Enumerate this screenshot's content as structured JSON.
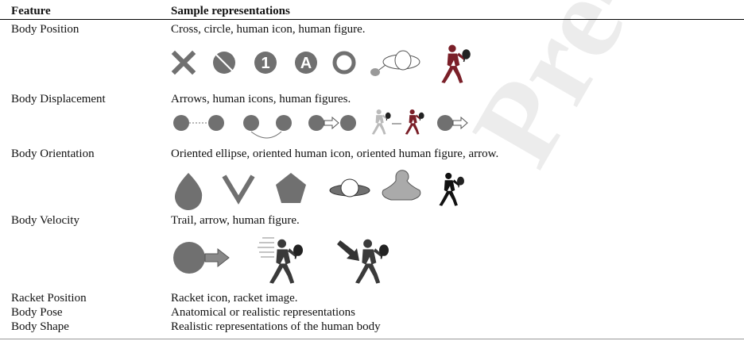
{
  "header": {
    "feature": "Feature",
    "samples": "Sample representations"
  },
  "table": {
    "rows": [
      [
        "Body Position",
        "Cross, circle, human icon, human figure."
      ],
      [
        "Body Displacement",
        "Arrows, human icons, human figures."
      ],
      [
        "Body Orientation",
        "Oriented ellipse, oriented human icon, oriented human figure, arrow."
      ],
      [
        "Body Velocity",
        "Trail, arrow, human figure."
      ],
      [
        "Racket Position",
        "Racket icon, racket image."
      ],
      [
        "Body Pose",
        "Anatomical or realistic representations"
      ],
      [
        "Body Shape",
        "Realistic representations of the human body"
      ]
    ]
  },
  "icons": {
    "number_marker": "1",
    "letter_marker": "A"
  },
  "watermark": "Pre-proof"
}
